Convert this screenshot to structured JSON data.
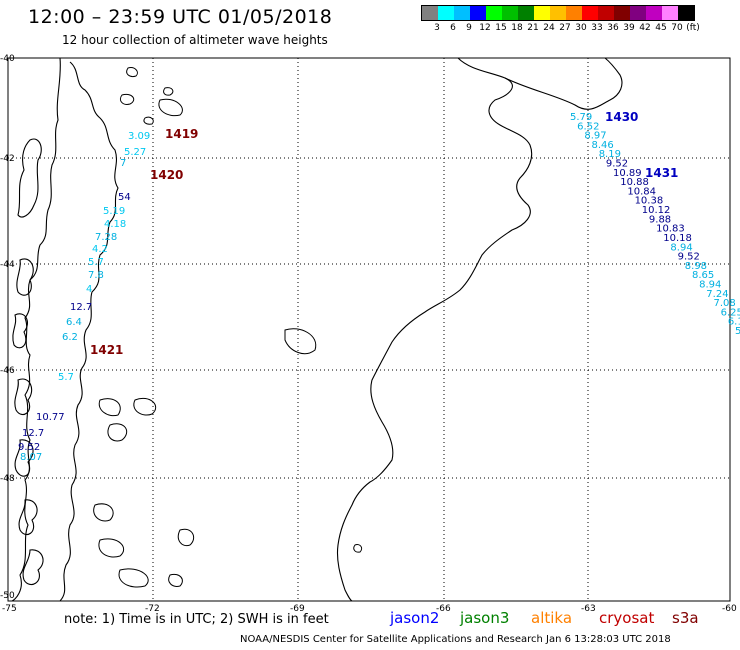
{
  "header": {
    "title": "12:00 – 23:59 UTC 01/05/2018",
    "subtitle": "12 hour collection of altimeter wave heights"
  },
  "legend": {
    "colors": [
      "#808080",
      "#00ffff",
      "#00bfff",
      "#0000ff",
      "#00ff00",
      "#00c000",
      "#008000",
      "#ffff00",
      "#ffc000",
      "#ff8000",
      "#ff0000",
      "#c00000",
      "#800000",
      "#800080",
      "#c000c0",
      "#ff80ff",
      "#000000"
    ],
    "labels": [
      "3",
      "6",
      "9",
      "12",
      "15",
      "18",
      "21",
      "24",
      "27",
      "30",
      "33",
      "36",
      "39",
      "42",
      "45",
      "70",
      "(ft)"
    ]
  },
  "axes": {
    "lat_labels": [
      "-40",
      "-42",
      "-44",
      "-46",
      "-48",
      "-50"
    ],
    "lon_labels": [
      "-75",
      "-72",
      "-69",
      "-66",
      "-63",
      "-60"
    ]
  },
  "tracks": {
    "east_id_1": "1430",
    "east_id_2": "1431",
    "west_id_1": "1419",
    "west_id_2": "1420",
    "west_id_3": "1421",
    "east_values": [
      "5.79",
      "6.52",
      "8.97",
      "8.46",
      "8.19",
      "9.52",
      "10.89",
      "10.88",
      "10.84",
      "10.38",
      "10.12",
      "9.88",
      "10.83",
      "10.18",
      "8.94",
      "9.52",
      "8.98",
      "8.65",
      "8.94",
      "7.24",
      "7.08",
      "6.25",
      "6.1",
      "5"
    ],
    "west_values": [
      "3.09",
      "5.27",
      "7",
      "54",
      "5.19",
      "4.18",
      "7.28",
      "4.2",
      "5.7",
      "7.8",
      "4",
      "12.7",
      "6.4",
      "6.2",
      "5.7",
      "10.77",
      "12.7",
      "9.52",
      "8.07"
    ]
  },
  "footer": {
    "note": "note:  1) Time is in UTC;  2) SWH is in feet",
    "sat_jason2": "jason2",
    "sat_jason3": "jason3",
    "sat_altika": "altika",
    "sat_cryosat": "cryosat",
    "sat_s3a": "s3a",
    "credit": "NOAA/NESDIS Center for Satellite Applications and Research    Jan  6 13:28:03 UTC 2018"
  },
  "colors": {
    "jason2": "#0000ff",
    "jason3": "#008000",
    "altika": "#ff8000",
    "cryosat": "#c00000",
    "s3a": "#800000"
  }
}
